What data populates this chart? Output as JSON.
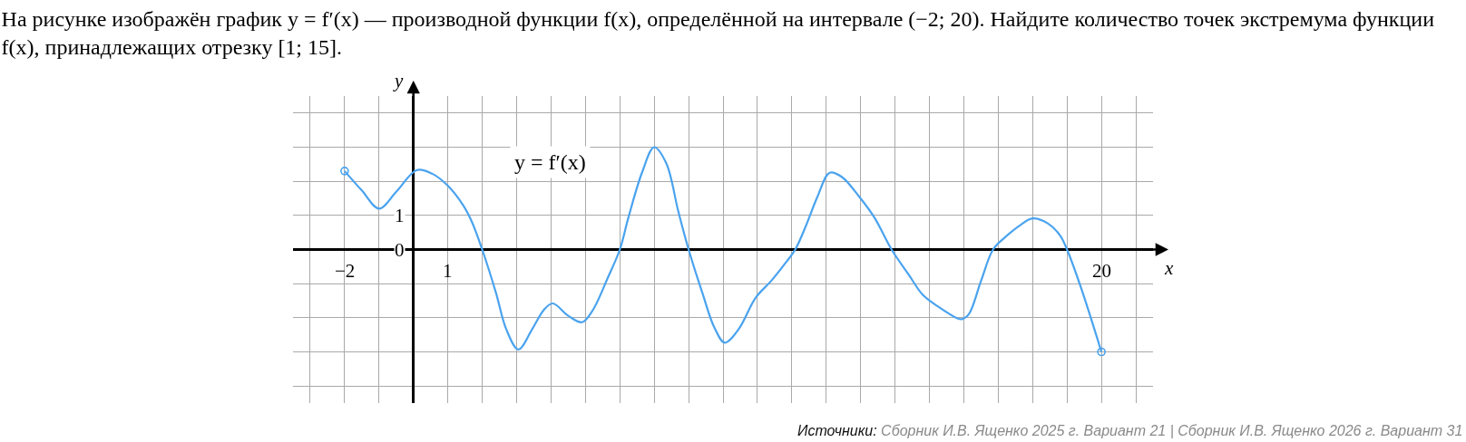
{
  "chart_data": {
    "type": "line",
    "title": "На рисунке изображён график y = f′(x) — производной функции f(x), определённой на интервале (−2; 20). Найдите количество точек экстремума функции\nf(x), принадлежащих отрезку [1; 15].",
    "xlabel": "x",
    "ylabel": "y",
    "annotations": [
      "Источники: Сборник И.В. Ященко 2025 г. Вариант 21 | Сборник И.В. Ященко 2026 г. Вариант 31"
    ],
    "xlim": [
      -3.5,
      21.5
    ],
    "ylim": [
      -4.5,
      4.5
    ],
    "xticks": [
      {
        "value": -3,
        "label": null
      },
      {
        "value": -2,
        "label": "−2"
      },
      {
        "value": -1,
        "label": null
      },
      {
        "value": 0,
        "label": null
      },
      1,
      {
        "value": 2,
        "label": null
      },
      {
        "value": 3,
        "label": null
      },
      {
        "value": 4,
        "label": null
      },
      {
        "value": 5,
        "label": null
      },
      {
        "value": 6,
        "label": null
      },
      {
        "value": 7,
        "label": null
      },
      {
        "value": 8,
        "label": null
      },
      {
        "value": 9,
        "label": null
      },
      {
        "value": 10,
        "label": null
      },
      {
        "value": 11,
        "label": null
      },
      {
        "value": 12,
        "label": null
      },
      {
        "value": 13,
        "label": null
      },
      {
        "value": 14,
        "label": null
      },
      {
        "value": 15,
        "label": null
      },
      {
        "value": 16,
        "label": null
      },
      {
        "value": 17,
        "label": null
      },
      {
        "value": 18,
        "label": null
      },
      {
        "value": 19,
        "label": null
      },
      20,
      {
        "value": 21,
        "label": null
      }
    ],
    "yticks": [
      {
        "value": -4,
        "label": null
      },
      {
        "value": -3,
        "label": null
      },
      {
        "value": -2,
        "label": null
      },
      {
        "value": -1,
        "label": null
      },
      0,
      1,
      {
        "value": 2,
        "label": null
      },
      {
        "value": 3,
        "label": null
      },
      {
        "value": 4,
        "label": null
      }
    ],
    "grid": true,
    "series": [
      {
        "name": "y = f′(x)",
        "color": "#4aa3ee",
        "x": [
          -2,
          -1.5,
          -1,
          -0.5,
          0.1,
          0.55,
          1,
          1.45,
          1.7,
          2,
          2.4,
          2.7,
          3.05,
          3.45,
          3.8,
          4.05,
          4.5,
          4.9,
          5.2,
          5.65,
          6,
          6.25,
          6.65,
          7,
          7.35,
          7.7,
          8,
          8.4,
          8.75,
          9.05,
          9.45,
          9.95,
          10.4,
          10.85,
          11.1,
          11.4,
          11.75,
          12.1,
          12.45,
          12.95,
          13.4,
          13.9,
          14.4,
          14.8,
          15.25,
          15.8,
          15.95,
          16.15,
          16.5,
          16.85,
          17.2,
          17.65,
          18,
          18.45,
          18.8,
          19,
          19.4,
          20
        ],
        "values": [
          2.3,
          1.73,
          1.2,
          1.69,
          2.33,
          2.22,
          1.87,
          1.29,
          0.81,
          0,
          -1.27,
          -2.34,
          -2.93,
          -2.34,
          -1.76,
          -1.58,
          -1.94,
          -2.13,
          -1.8,
          -0.83,
          0,
          0.94,
          2.27,
          3,
          2.53,
          1.12,
          0,
          -1.27,
          -2.29,
          -2.73,
          -2.34,
          -1.41,
          -0.92,
          -0.35,
          0,
          0.67,
          1.56,
          2.25,
          2.13,
          1.56,
          0.94,
          0,
          -0.74,
          -1.32,
          -1.67,
          -2.01,
          -2.04,
          -1.89,
          -0.92,
          0,
          0.36,
          0.72,
          0.91,
          0.76,
          0.41,
          0,
          -1.1,
          -3
        ]
      },
      {
        "type": "scatter",
        "color": "#4aa3ee",
        "marker": "circle",
        "x": [
          -2,
          20
        ],
        "values": [
          2.3,
          -3
        ]
      }
    ]
  }
}
